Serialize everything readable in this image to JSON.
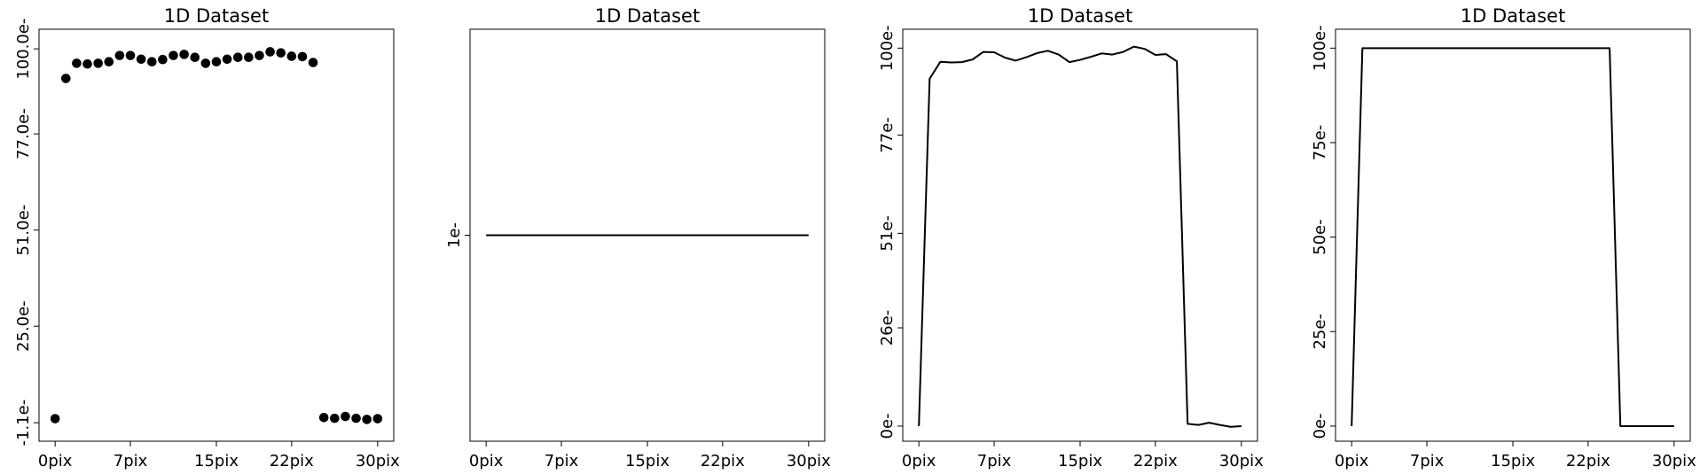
{
  "chart_data": [
    {
      "type": "scatter",
      "title": "1D Dataset",
      "xlim": [
        -1.5,
        31.5
      ],
      "ylim": [
        -6.1,
        105.3
      ],
      "xticks": [
        0,
        7,
        15,
        22,
        30
      ],
      "xtick_labels": [
        "0pix",
        "7pix",
        "15pix",
        "22pix",
        "30pix"
      ],
      "yticks": [
        -1.1,
        25.0,
        51.0,
        77.0,
        100.0
      ],
      "ytick_labels": [
        "-1.1e-",
        "25.0e-",
        "51.0e-",
        "77.0e-",
        "100.0e-"
      ],
      "series": [
        {
          "x": [
            0,
            1,
            2,
            3,
            4,
            5,
            6,
            7,
            8,
            9,
            10,
            11,
            12,
            13,
            14,
            15,
            16,
            17,
            18,
            19,
            20,
            21,
            22,
            23,
            24,
            25,
            26,
            27,
            28,
            29,
            30
          ],
          "y": [
            0.0,
            92.0,
            96.1,
            95.9,
            96.1,
            96.5,
            98.2,
            98.2,
            97.2,
            96.5,
            97.1,
            98.2,
            98.5,
            97.7,
            96.1,
            96.5,
            97.2,
            97.7,
            97.7,
            98.2,
            99.2,
            98.9,
            98.0,
            97.9,
            96.3,
            0.3,
            0.1,
            0.6,
            0.1,
            -0.2,
            0.0
          ]
        }
      ]
    },
    {
      "type": "line",
      "title": "1D Dataset",
      "xlim": [
        -1.5,
        31.5
      ],
      "ylim": [
        0.945,
        1.055
      ],
      "xticks": [
        0,
        7,
        15,
        22,
        30
      ],
      "xtick_labels": [
        "0pix",
        "7pix",
        "15pix",
        "22pix",
        "30pix"
      ],
      "yticks": [
        1
      ],
      "ytick_labels": [
        "1e-"
      ],
      "series": [
        {
          "x": [
            0,
            30
          ],
          "y": [
            1,
            1
          ]
        }
      ]
    },
    {
      "type": "line",
      "title": "1D Dataset",
      "xlim": [
        -1.5,
        31.5
      ],
      "ylim": [
        -4.0,
        105.0
      ],
      "xticks": [
        0,
        7,
        15,
        22,
        30
      ],
      "xtick_labels": [
        "0pix",
        "7pix",
        "15pix",
        "22pix",
        "30pix"
      ],
      "yticks": [
        0,
        26,
        51,
        77,
        100
      ],
      "ytick_labels": [
        "0e-",
        "26e-",
        "51e-",
        "77e-",
        "100e-"
      ],
      "series": [
        {
          "x": [
            0,
            1,
            2,
            3,
            4,
            5,
            6,
            7,
            8,
            9,
            10,
            11,
            12,
            13,
            14,
            15,
            16,
            17,
            18,
            19,
            20,
            21,
            22,
            23,
            24,
            25,
            26,
            27,
            28,
            29,
            30
          ],
          "y": [
            0.0,
            91.9,
            96.4,
            96.2,
            96.3,
            97.0,
            99.0,
            98.9,
            97.5,
            96.7,
            97.6,
            98.7,
            99.3,
            98.3,
            96.3,
            96.9,
            97.7,
            98.6,
            98.3,
            99.0,
            100.4,
            99.8,
            98.2,
            98.4,
            96.5,
            0.6,
            0.3,
            0.9,
            0.3,
            -0.2,
            0.0
          ]
        }
      ]
    },
    {
      "type": "line",
      "title": "1D Dataset",
      "xlim": [
        -1.5,
        31.5
      ],
      "ylim": [
        -4.0,
        105.0
      ],
      "xticks": [
        0,
        7,
        15,
        22,
        30
      ],
      "xtick_labels": [
        "0pix",
        "7pix",
        "15pix",
        "22pix",
        "30pix"
      ],
      "yticks": [
        0,
        25,
        50,
        75,
        100
      ],
      "ytick_labels": [
        "0e-",
        "25e-",
        "50e-",
        "75e-",
        "100e-"
      ],
      "series": [
        {
          "x": [
            0,
            1,
            2,
            3,
            4,
            5,
            6,
            7,
            8,
            9,
            10,
            11,
            12,
            13,
            14,
            15,
            16,
            17,
            18,
            19,
            20,
            21,
            22,
            23,
            24,
            25,
            26,
            27,
            28,
            29,
            30
          ],
          "y": [
            0,
            100,
            100,
            100,
            100,
            100,
            100,
            100,
            100,
            100,
            100,
            100,
            100,
            100,
            100,
            100,
            100,
            100,
            100,
            100,
            100,
            100,
            100,
            100,
            100,
            0,
            0,
            0,
            0,
            0,
            0
          ]
        }
      ]
    }
  ]
}
